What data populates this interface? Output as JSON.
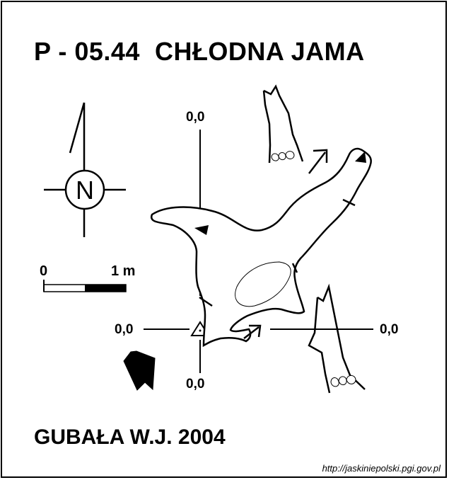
{
  "title": "P - 05.44  CHŁODNA JAMA",
  "north_label": "N",
  "scale": {
    "zero": "0",
    "one": "1 m"
  },
  "axis_labels": {
    "top": "0,0",
    "left": "0,0",
    "right": "0,0",
    "bottom": "0,0"
  },
  "author": "GUBAŁA W.J. 2004",
  "source_url": "http://jaskiniepolski.pgi.gov.pl",
  "icons": [
    "north-arrow-icon",
    "entrance-arrow-icon",
    "datum-triangle-icon",
    "tree-icon"
  ]
}
